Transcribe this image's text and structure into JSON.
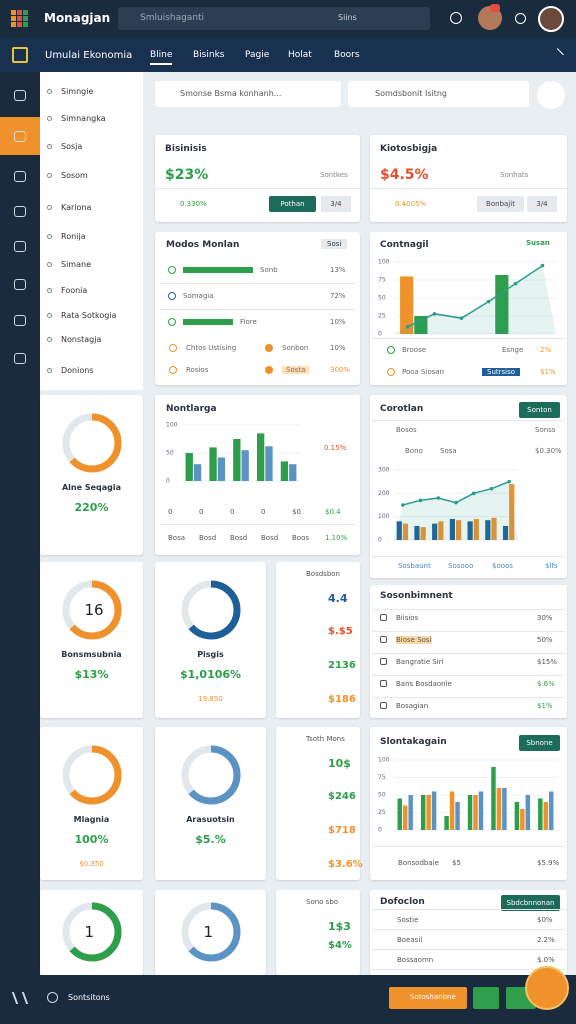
{
  "header": {
    "brand": "Monagjan",
    "search": "Smluishaganti",
    "filter": "Siins"
  },
  "nav": {
    "title": "Umulai Ekonomia",
    "tabs": [
      "Bline",
      "Bisinks",
      "Pagie",
      "Holat",
      "Boors"
    ]
  },
  "sidebar": {
    "items": [
      "Simngie",
      "Simnangka",
      "Sosja",
      "Sosom",
      "Kariona",
      "Ronija",
      "Simane",
      "Foonia",
      "Rata Sotkogia",
      "Nonstagja",
      "Donions"
    ]
  },
  "search": {
    "left": "Smonse Bsma konhanh...",
    "right": "Somdsbonit Isitng"
  },
  "kpi": [
    {
      "title": "Bisinisis",
      "value": "$23%",
      "sub": "Sontkes",
      "tag": "0.330%",
      "button": "Pothan",
      "page": "3/4"
    },
    {
      "title": "Kiotosbigja",
      "value": "$4.5%",
      "sub": "Sonhats",
      "tag": "0.4005%",
      "button": "Bonbajit",
      "page": "3/4"
    }
  ],
  "progress": {
    "title": "Modos Monlan",
    "badge": "Sosi",
    "rows": [
      [
        "Sonb",
        "13%"
      ],
      [
        "Somagia",
        "72%"
      ],
      [
        "Fiore",
        "10%"
      ]
    ],
    "foot": [
      [
        "Chtos Ustising",
        "Sonbon"
      ],
      [
        "10%",
        "30%"
      ],
      [
        "Rosios",
        "Sosta"
      ],
      [
        "$10%",
        "300%"
      ]
    ]
  },
  "contnagil": {
    "title": "Contnagil",
    "badge": "Susan",
    "ylim": [
      0,
      100
    ],
    "yticks": [
      0,
      25,
      50,
      75,
      100
    ],
    "series": [
      {
        "type": "bar",
        "color": "#f0922b",
        "values": [
          80,
          null,
          null,
          null
        ]
      },
      {
        "type": "bar",
        "color": "#2e9e4a",
        "values": [
          25,
          null,
          82,
          null
        ]
      },
      {
        "type": "line",
        "color": "#2a9d8f",
        "values": [
          10,
          28,
          22,
          45,
          70,
          95
        ]
      }
    ],
    "foot": [
      [
        "Broose",
        "Esnge",
        "2%"
      ],
      [
        "Pooa Siosan",
        "Sutrsiso",
        "$1%"
      ]
    ]
  },
  "nontlarga": {
    "title": "Nontlarga",
    "marker": "0.15%",
    "ylim": [
      0,
      100
    ],
    "yticks": [
      0,
      50,
      100
    ],
    "series": [
      {
        "type": "bar",
        "color": "#2e9e4a",
        "values": [
          50,
          60,
          75,
          85,
          35
        ]
      },
      {
        "type": "bar",
        "color": "#5a93c4",
        "values": [
          30,
          42,
          55,
          62,
          30
        ]
      }
    ],
    "rows": [
      [
        "0",
        "0",
        "0",
        "0",
        "$0",
        "$0.4"
      ],
      [
        "Bosa",
        "Bosd",
        "Bosd",
        "Bosd",
        "Boos",
        "1.10%"
      ]
    ]
  },
  "corotlan": {
    "title": "Corotlan",
    "button": "Sonton",
    "head": [
      "Bosos",
      "Sonss"
    ],
    "legend": [
      "Bono",
      "Sosa",
      "$0.30%"
    ],
    "ylim": [
      0,
      300
    ],
    "yticks": [
      0,
      100,
      200,
      300
    ],
    "series": [
      {
        "type": "bar",
        "color": "#1f5f99",
        "values": [
          80,
          60,
          70,
          90,
          80,
          85,
          60
        ]
      },
      {
        "type": "bar",
        "color": "#f0922b",
        "values": [
          70,
          55,
          80,
          85,
          90,
          95,
          240
        ]
      },
      {
        "type": "line",
        "color": "#2a9d8f",
        "values": [
          150,
          170,
          180,
          160,
          200,
          220,
          250
        ]
      }
    ],
    "foot": [
      "Sosbaunt",
      "Sosooo",
      "$ooos",
      "$lfs"
    ]
  },
  "sosonbimnent": {
    "title": "Sosonbimnent",
    "rows": [
      [
        "Biisios",
        "30%"
      ],
      [
        "Biose Sosi",
        "50%"
      ],
      [
        "Bangratie Siri",
        "$15%"
      ],
      [
        "Bans Bosdaonle",
        "$.6%"
      ],
      [
        "Bosagian",
        "$1%"
      ]
    ]
  },
  "slontakagain": {
    "title": "Slontakagain",
    "button": "Sbnone",
    "ylim": [
      0,
      100
    ],
    "yticks": [
      0,
      25,
      50,
      75,
      100
    ],
    "series": [
      {
        "type": "bar",
        "color": "#2e9e4a",
        "values": [
          45,
          50,
          20,
          50,
          90,
          40,
          45
        ]
      },
      {
        "type": "bar",
        "color": "#f0922b",
        "values": [
          35,
          50,
          55,
          50,
          60,
          30,
          40
        ]
      },
      {
        "type": "bar",
        "color": "#5a93c4",
        "values": [
          50,
          55,
          40,
          55,
          60,
          50,
          55
        ]
      }
    ],
    "foot": [
      "Bonsodbaie",
      "$5",
      "$5.9%"
    ]
  },
  "dofoclon": {
    "title": "Dofoclon",
    "button": "Sbdcbnnonan",
    "rows": [
      [
        "Sostie",
        "$0%"
      ],
      [
        "Boeasil",
        "2.2%"
      ],
      [
        "Bossaomn",
        "$.0%"
      ],
      [
        "Boson",
        "$0%"
      ]
    ]
  },
  "tiles": [
    {
      "title": "Alne Seqagia",
      "value": "220%"
    },
    {
      "center": "16",
      "title": "Bonsmsubnia",
      "value": "$13%"
    },
    {
      "title": "Pisgis",
      "value": "$1,0106%",
      "sub": "19.850"
    },
    {
      "title": "Mlagnia",
      "value": "100%",
      "sub": "$0.350"
    },
    {
      "title": "Arasuotsin",
      "value": "$5.%"
    },
    {
      "center": "1"
    },
    {
      "center": "1"
    }
  ],
  "lists": [
    {
      "title": "Bosdsbon",
      "values": [
        "4.4",
        "$.$5",
        "2136",
        "$186"
      ]
    },
    {
      "title": "Tsoth Mons",
      "values": [
        "10$",
        "$246",
        "$718",
        "$3.6%"
      ]
    },
    {
      "title": "Sono sbo",
      "values": [
        "1$3",
        "$4%"
      ]
    }
  ],
  "footer": {
    "label": "Sontsitons",
    "button": "Sotoshanbne"
  }
}
